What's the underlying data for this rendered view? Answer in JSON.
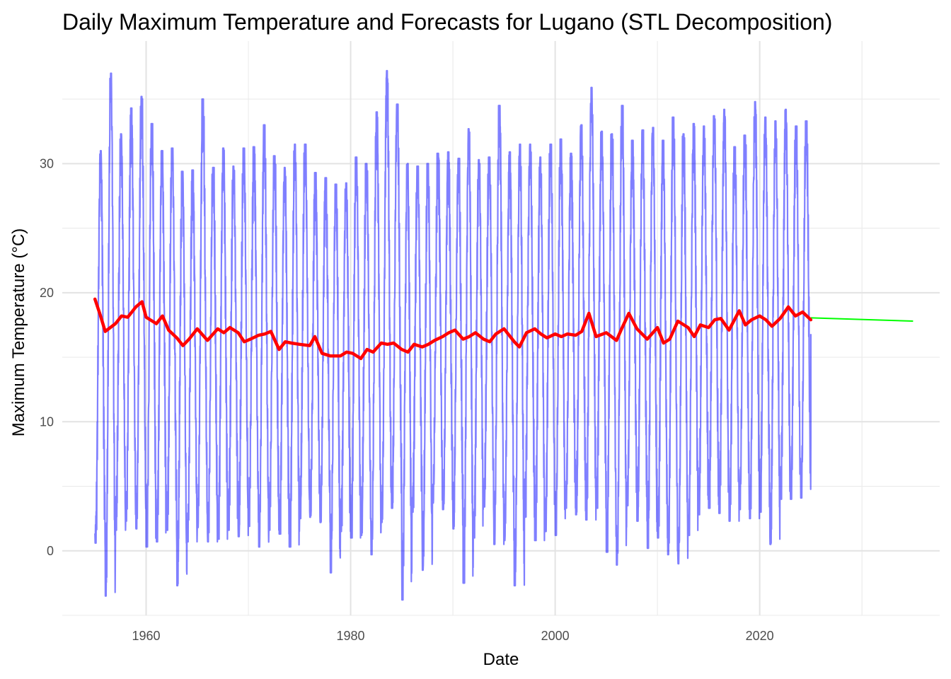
{
  "chart_data": {
    "type": "line",
    "title": "Daily Maximum Temperature and Forecasts for Lugano (STL Decomposition)",
    "xlabel": "Date",
    "ylabel": "Maximum Temperature (°C)",
    "xlim": [
      1951.8,
      2037.6
    ],
    "ylim": [
      -5.0,
      39.5
    ],
    "x_ticks": [
      1960,
      1980,
      2000,
      2020
    ],
    "y_ticks": [
      0,
      10,
      20,
      30
    ],
    "x_tick_labels": [
      "1960",
      "1980",
      "2000",
      "2020"
    ],
    "y_tick_labels": [
      "0",
      "10",
      "20",
      "30"
    ],
    "grid": true,
    "legend": "none",
    "series": [
      {
        "style": "observed",
        "color": "#0000ff",
        "x_start": 1955.0,
        "x_end": 2025.0,
        "annual_min_max": [
          [
            1955,
            0.6,
            31.0
          ],
          [
            1956,
            -3.5,
            37.0
          ],
          [
            1957,
            1.6,
            32.3
          ],
          [
            1958,
            2.3,
            34.3
          ],
          [
            1959,
            1.7,
            35.2
          ],
          [
            1960,
            0.3,
            33.1
          ],
          [
            1961,
            0.7,
            31.0
          ],
          [
            1962,
            1.6,
            31.2
          ],
          [
            1963,
            -2.7,
            29.4
          ],
          [
            1964,
            0.7,
            29.5
          ],
          [
            1965,
            1.8,
            35.0
          ],
          [
            1966,
            0.7,
            29.7
          ],
          [
            1967,
            0.9,
            31.2
          ],
          [
            1968,
            1.6,
            29.8
          ],
          [
            1969,
            1.1,
            31.2
          ],
          [
            1970,
            1.9,
            31.3
          ],
          [
            1971,
            0.3,
            33.0
          ],
          [
            1972,
            1.6,
            30.6
          ],
          [
            1973,
            1.3,
            29.7
          ],
          [
            1974,
            0.3,
            31.5
          ],
          [
            1975,
            2.5,
            31.5
          ],
          [
            1976,
            2.6,
            29.3
          ],
          [
            1977,
            2.2,
            28.9
          ],
          [
            1978,
            -1.7,
            28.4
          ],
          [
            1979,
            1.5,
            28.5
          ],
          [
            1980,
            1.0,
            30.5
          ],
          [
            1981,
            1.2,
            30.0
          ],
          [
            1982,
            -0.3,
            34.0
          ],
          [
            1983,
            2.2,
            37.2
          ],
          [
            1984,
            3.3,
            34.6
          ],
          [
            1985,
            -3.8,
            30.0
          ],
          [
            1986,
            3.0,
            29.8
          ],
          [
            1987,
            -1.5,
            30.0
          ],
          [
            1988,
            3.7,
            30.8
          ],
          [
            1989,
            3.2,
            30.9
          ],
          [
            1990,
            1.7,
            30.4
          ],
          [
            1991,
            -2.5,
            32.7
          ],
          [
            1992,
            1.0,
            30.3
          ],
          [
            1993,
            3.4,
            30.5
          ],
          [
            1994,
            0.5,
            34.5
          ],
          [
            1995,
            0.8,
            30.9
          ],
          [
            1996,
            -2.7,
            31.5
          ],
          [
            1997,
            2.6,
            31.5
          ],
          [
            1998,
            0.8,
            30.5
          ],
          [
            1999,
            1.5,
            31.5
          ],
          [
            2000,
            1.2,
            31.9
          ],
          [
            2001,
            3.3,
            30.8
          ],
          [
            2002,
            2.8,
            33.0
          ],
          [
            2003,
            2.4,
            35.9
          ],
          [
            2004,
            3.3,
            32.5
          ],
          [
            2005,
            -0.1,
            32.3
          ],
          [
            2006,
            -1.1,
            34.5
          ],
          [
            2007,
            3.5,
            31.8
          ],
          [
            2008,
            2.3,
            32.6
          ],
          [
            2009,
            0.2,
            32.8
          ],
          [
            2010,
            1.0,
            31.8
          ],
          [
            2011,
            -0.3,
            33.6
          ],
          [
            2012,
            -1.0,
            32.3
          ],
          [
            2013,
            1.2,
            33.1
          ],
          [
            2014,
            2.8,
            32.9
          ],
          [
            2015,
            3.3,
            33.7
          ],
          [
            2016,
            2.9,
            34.2
          ],
          [
            2017,
            2.3,
            31.3
          ],
          [
            2018,
            3.2,
            32.2
          ],
          [
            2019,
            2.5,
            34.8
          ],
          [
            2020,
            3.0,
            33.6
          ],
          [
            2021,
            0.5,
            33.3
          ],
          [
            2022,
            4.0,
            34.2
          ],
          [
            2023,
            4.0,
            32.9
          ],
          [
            2024,
            4.1,
            33.3
          ]
        ]
      },
      {
        "style": "trend",
        "color": "#ff0000",
        "points": [
          [
            1955.0,
            19.5
          ],
          [
            1955.5,
            18.3
          ],
          [
            1956.0,
            17.0
          ],
          [
            1957.0,
            17.6
          ],
          [
            1957.6,
            18.2
          ],
          [
            1958.2,
            18.1
          ],
          [
            1959.0,
            18.9
          ],
          [
            1959.6,
            19.3
          ],
          [
            1960.0,
            18.1
          ],
          [
            1961.0,
            17.6
          ],
          [
            1961.6,
            18.2
          ],
          [
            1962.2,
            17.1
          ],
          [
            1963.0,
            16.5
          ],
          [
            1963.6,
            15.9
          ],
          [
            1964.2,
            16.4
          ],
          [
            1965.0,
            17.2
          ],
          [
            1966.0,
            16.3
          ],
          [
            1967.0,
            17.2
          ],
          [
            1967.6,
            16.9
          ],
          [
            1968.2,
            17.3
          ],
          [
            1969.0,
            16.9
          ],
          [
            1969.6,
            16.2
          ],
          [
            1970.2,
            16.4
          ],
          [
            1971.0,
            16.7
          ],
          [
            1971.6,
            16.8
          ],
          [
            1972.2,
            17.0
          ],
          [
            1973.0,
            15.6
          ],
          [
            1973.6,
            16.2
          ],
          [
            1974.2,
            16.1
          ],
          [
            1975.0,
            16.0
          ],
          [
            1976.0,
            15.9
          ],
          [
            1976.5,
            16.6
          ],
          [
            1977.2,
            15.3
          ],
          [
            1978.0,
            15.1
          ],
          [
            1979.0,
            15.1
          ],
          [
            1979.6,
            15.4
          ],
          [
            1980.2,
            15.3
          ],
          [
            1981.0,
            14.9
          ],
          [
            1981.6,
            15.6
          ],
          [
            1982.2,
            15.4
          ],
          [
            1983.0,
            16.1
          ],
          [
            1983.6,
            16.0
          ],
          [
            1984.2,
            16.1
          ],
          [
            1985.0,
            15.6
          ],
          [
            1985.6,
            15.4
          ],
          [
            1986.2,
            16.0
          ],
          [
            1987.0,
            15.8
          ],
          [
            1987.6,
            16.0
          ],
          [
            1988.2,
            16.3
          ],
          [
            1989.0,
            16.6
          ],
          [
            1989.6,
            16.9
          ],
          [
            1990.2,
            17.1
          ],
          [
            1991.0,
            16.4
          ],
          [
            1991.6,
            16.6
          ],
          [
            1992.2,
            16.9
          ],
          [
            1993.0,
            16.4
          ],
          [
            1993.6,
            16.2
          ],
          [
            1994.2,
            16.8
          ],
          [
            1995.0,
            17.2
          ],
          [
            1996.0,
            16.2
          ],
          [
            1996.5,
            15.8
          ],
          [
            1997.2,
            16.9
          ],
          [
            1998.0,
            17.2
          ],
          [
            1998.6,
            16.8
          ],
          [
            1999.2,
            16.5
          ],
          [
            2000.0,
            16.8
          ],
          [
            2000.6,
            16.6
          ],
          [
            2001.2,
            16.8
          ],
          [
            2002.0,
            16.7
          ],
          [
            2002.6,
            17.0
          ],
          [
            2003.3,
            18.4
          ],
          [
            2004.0,
            16.6
          ],
          [
            2005.0,
            16.9
          ],
          [
            2006.0,
            16.3
          ],
          [
            2006.5,
            17.2
          ],
          [
            2007.2,
            18.4
          ],
          [
            2008.0,
            17.2
          ],
          [
            2009.0,
            16.4
          ],
          [
            2010.0,
            17.3
          ],
          [
            2010.6,
            16.1
          ],
          [
            2011.2,
            16.4
          ],
          [
            2012.0,
            17.8
          ],
          [
            2013.0,
            17.3
          ],
          [
            2013.6,
            16.6
          ],
          [
            2014.2,
            17.5
          ],
          [
            2015.0,
            17.3
          ],
          [
            2015.6,
            17.9
          ],
          [
            2016.2,
            18.0
          ],
          [
            2017.0,
            17.1
          ],
          [
            2018.0,
            18.6
          ],
          [
            2018.6,
            17.5
          ],
          [
            2019.2,
            17.9
          ],
          [
            2020.0,
            18.2
          ],
          [
            2020.6,
            17.9
          ],
          [
            2021.2,
            17.4
          ],
          [
            2022.0,
            18.0
          ],
          [
            2022.8,
            18.9
          ],
          [
            2023.5,
            18.2
          ],
          [
            2024.2,
            18.5
          ],
          [
            2025.0,
            17.9
          ]
        ]
      },
      {
        "style": "forecast",
        "color": "#00ff00",
        "points": [
          [
            2025.0,
            18.05
          ],
          [
            2035.0,
            17.8
          ]
        ]
      }
    ]
  }
}
